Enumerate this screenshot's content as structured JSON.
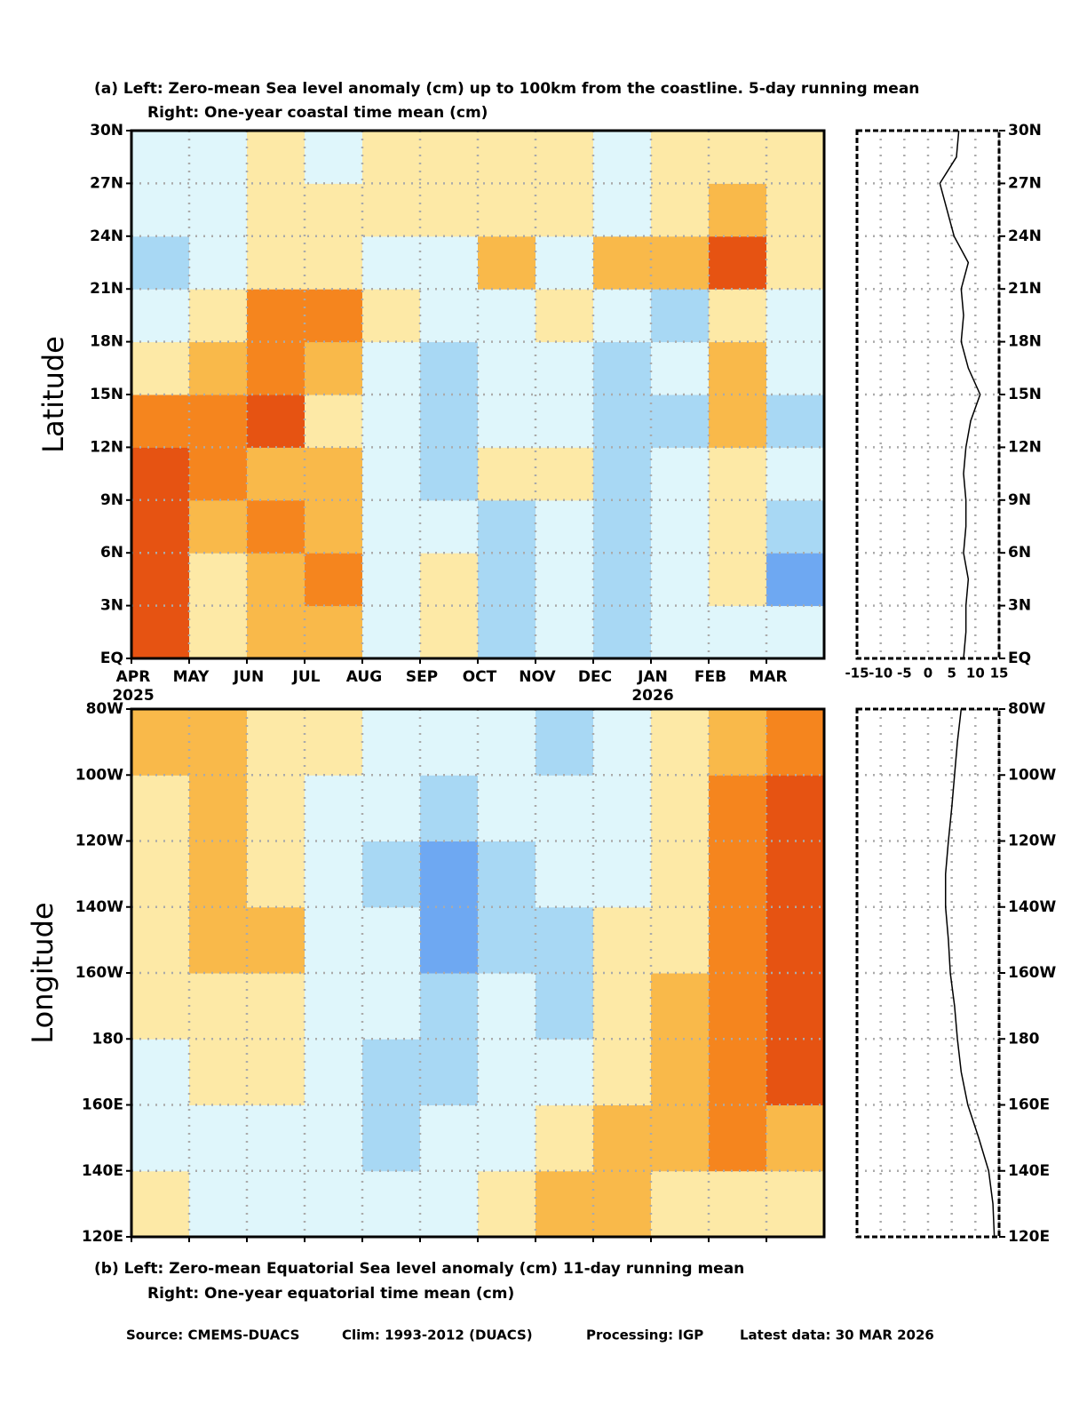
{
  "chart_data": [
    {
      "type": "heatmap",
      "title": "(a)  Left: Zero-mean Sea level anomaly (cm) up to 100km from the coastline. 5-day running mean",
      "subtitle": "Right: One-year coastal time mean (cm)",
      "y_label": "Latitude",
      "categories": [
        "APR",
        "MAY",
        "JUN",
        "JUL",
        "AUG",
        "SEP",
        "OCT",
        "NOV",
        "DEC",
        "JAN",
        "FEB",
        "MAR"
      ],
      "category_years": [
        "2025",
        null,
        null,
        null,
        null,
        null,
        null,
        null,
        null,
        "2026",
        null,
        null
      ],
      "ybins": [
        0,
        3,
        6,
        9,
        12,
        15,
        18,
        21,
        24,
        27,
        30
      ],
      "ylim": [
        0,
        30
      ],
      "yticks": [
        {
          "value": 0,
          "label": "EQ"
        },
        {
          "value": 3,
          "label": "3N"
        },
        {
          "value": 6,
          "label": "6N"
        },
        {
          "value": 9,
          "label": "9N"
        },
        {
          "value": 12,
          "label": "12N"
        },
        {
          "value": 15,
          "label": "15N"
        },
        {
          "value": 18,
          "label": "18N"
        },
        {
          "value": 21,
          "label": "21N"
        },
        {
          "value": 24,
          "label": "24N"
        },
        {
          "value": 27,
          "label": "27N"
        },
        {
          "value": 30,
          "label": "30N"
        }
      ],
      "z": [
        [
          10,
          1,
          5,
          4,
          -1,
          1,
          -5,
          -3,
          -5,
          -3,
          -2,
          -3
        ],
        [
          11,
          1,
          5,
          6,
          -1,
          0,
          -5,
          -3,
          -4,
          -3,
          2,
          -7
        ],
        [
          10,
          3,
          6,
          4,
          -1,
          -1,
          -4,
          -3,
          -4,
          -3,
          1,
          -6
        ],
        [
          11,
          6,
          4,
          3,
          -2,
          -5,
          1,
          1,
          -5,
          -2,
          1,
          -3
        ],
        [
          8,
          8,
          9,
          2,
          -2,
          -6,
          -3,
          -3,
          -6,
          -5,
          3,
          -4
        ],
        [
          1,
          5,
          7,
          4,
          -3,
          -4,
          -2,
          -3,
          -4,
          -3,
          3,
          -3
        ],
        [
          -2,
          2,
          7,
          8,
          1,
          -2,
          -1,
          1,
          -3,
          -5,
          2,
          -1
        ],
        [
          -4,
          -2,
          1,
          1,
          -1,
          -2,
          3,
          -1,
          3,
          5,
          9,
          1
        ],
        [
          -2,
          -1,
          1,
          1,
          0,
          1,
          2,
          1,
          -1,
          2,
          3,
          1
        ],
        [
          -3,
          -2,
          1,
          -1,
          1,
          2,
          2,
          1,
          -1,
          2,
          2,
          2
        ]
      ],
      "levels": [
        -9,
        -6,
        -3,
        0,
        3,
        6,
        9,
        12
      ],
      "colors": [
        "#3f7fe0",
        "#6ea8f2",
        "#a8d8f4",
        "#dff6fb",
        "#fde9a6",
        "#f9b94a",
        "#f5851e",
        "#e65312",
        "#b8201a"
      ],
      "grid": true
    },
    {
      "type": "line",
      "values": [
        7.5,
        8,
        8,
        8.5,
        7.5,
        8,
        8,
        7.5,
        8,
        9,
        11,
        8.5,
        7,
        7.5,
        7,
        8.5,
        5.5,
        4,
        2.5,
        6,
        6.5
      ],
      "y": [
        0,
        1.5,
        3,
        4.5,
        6,
        7.5,
        9,
        10.5,
        12,
        13.5,
        15,
        16.5,
        18,
        19.5,
        21,
        22.5,
        24,
        25.5,
        27,
        28.5,
        30
      ],
      "xlim": [
        -15,
        15
      ],
      "xticks": [
        -15,
        -10,
        -5,
        0,
        5,
        10,
        15
      ],
      "xtick_labels": true,
      "ylim": [
        0,
        30
      ],
      "yticks": [
        {
          "value": 0,
          "label": "EQ"
        },
        {
          "value": 3,
          "label": "3N"
        },
        {
          "value": 6,
          "label": "6N"
        },
        {
          "value": 9,
          "label": "9N"
        },
        {
          "value": 12,
          "label": "12N"
        },
        {
          "value": 15,
          "label": "15N"
        },
        {
          "value": 18,
          "label": "18N"
        },
        {
          "value": 21,
          "label": "21N"
        },
        {
          "value": 24,
          "label": "24N"
        },
        {
          "value": 27,
          "label": "27N"
        },
        {
          "value": 30,
          "label": "30N"
        }
      ],
      "color": "#000000",
      "grid": true
    },
    {
      "type": "heatmap",
      "title": "(b)  Left: Zero-mean Equatorial Sea level anomaly (cm) 11-day running mean",
      "subtitle": "Right: One-year equatorial time mean (cm)",
      "y_label": "Longitude",
      "categories": [
        null,
        null,
        null,
        null,
        null,
        null,
        null,
        null,
        null,
        null,
        null,
        null
      ],
      "ybins": [
        120,
        140,
        160,
        180,
        200,
        220,
        240,
        260,
        280
      ],
      "ylim": [
        120,
        280
      ],
      "yticks": [
        {
          "value": 120,
          "label": "120E"
        },
        {
          "value": 140,
          "label": "140E"
        },
        {
          "value": 160,
          "label": "160E"
        },
        180,
        {
          "value": 200,
          "label": "160W"
        },
        {
          "value": 220,
          "label": "140W"
        },
        {
          "value": 240,
          "label": "120W"
        },
        {
          "value": 260,
          "label": "100W"
        },
        {
          "value": 280,
          "label": "80W"
        }
      ],
      "z": [
        [
          1,
          -1,
          -2,
          -2,
          -3,
          -2,
          1,
          3,
          4,
          2,
          1,
          0
        ],
        [
          -1,
          -3,
          -2,
          -3,
          -6,
          -3,
          -1,
          2,
          4,
          4,
          6,
          5
        ],
        [
          -2,
          0,
          1,
          -2,
          -4,
          -5,
          -2,
          -1,
          2,
          4,
          8,
          10
        ],
        [
          0,
          2,
          1,
          -2,
          -3,
          -5,
          -3,
          -4,
          1,
          3,
          8,
          9
        ],
        [
          1,
          4,
          3,
          -1,
          -3,
          -7,
          -5,
          -5,
          1,
          2,
          8,
          10
        ],
        [
          1,
          4,
          2,
          -1,
          -4,
          -7,
          -4,
          -3,
          -2,
          1,
          7,
          11
        ],
        [
          2,
          3,
          1,
          -1,
          -3,
          -4,
          -3,
          -2,
          -2,
          1,
          6,
          9
        ],
        [
          4,
          5,
          2,
          0,
          -2,
          -3,
          -3,
          -4,
          -3,
          0,
          4,
          8
        ]
      ],
      "levels": [
        -9,
        -6,
        -3,
        0,
        3,
        6,
        9,
        12
      ],
      "colors": [
        "#3f7fe0",
        "#6ea8f2",
        "#a8d8f4",
        "#dff6fb",
        "#fde9a6",
        "#f9b94a",
        "#f5851e",
        "#e65312",
        "#b8201a"
      ],
      "grid": true
    },
    {
      "type": "line",
      "values": [
        14,
        13.7,
        12.8,
        10.7,
        8.4,
        7,
        6.2,
        5.6,
        4.7,
        4.3,
        3.7,
        3.7,
        4.3,
        5,
        5.6,
        6.2,
        7
      ],
      "y": [
        120,
        130,
        140,
        150,
        160,
        170,
        180,
        190,
        200,
        210,
        220,
        230,
        240,
        250,
        260,
        270,
        280
      ],
      "xlim": [
        -15,
        15
      ],
      "xticks": [
        -15,
        -10,
        -5,
        0,
        5,
        10,
        15
      ],
      "xtick_labels": false,
      "ylim": [
        120,
        280
      ],
      "yticks": [
        {
          "value": 120,
          "label": "120E"
        },
        {
          "value": 140,
          "label": "140E"
        },
        {
          "value": 160,
          "label": "160E"
        },
        180,
        {
          "value": 200,
          "label": "160W"
        },
        {
          "value": 220,
          "label": "140W"
        },
        {
          "value": 240,
          "label": "120W"
        },
        {
          "value": 260,
          "label": "100W"
        },
        {
          "value": 280,
          "label": "80W"
        }
      ],
      "color": "#000000",
      "grid": true
    }
  ],
  "footer": [
    "Source: CMEMS-DUACS",
    "Clim: 1993-2012 (DUACS)",
    "Processing: IGP",
    "Latest data: 30 MAR 2026"
  ]
}
